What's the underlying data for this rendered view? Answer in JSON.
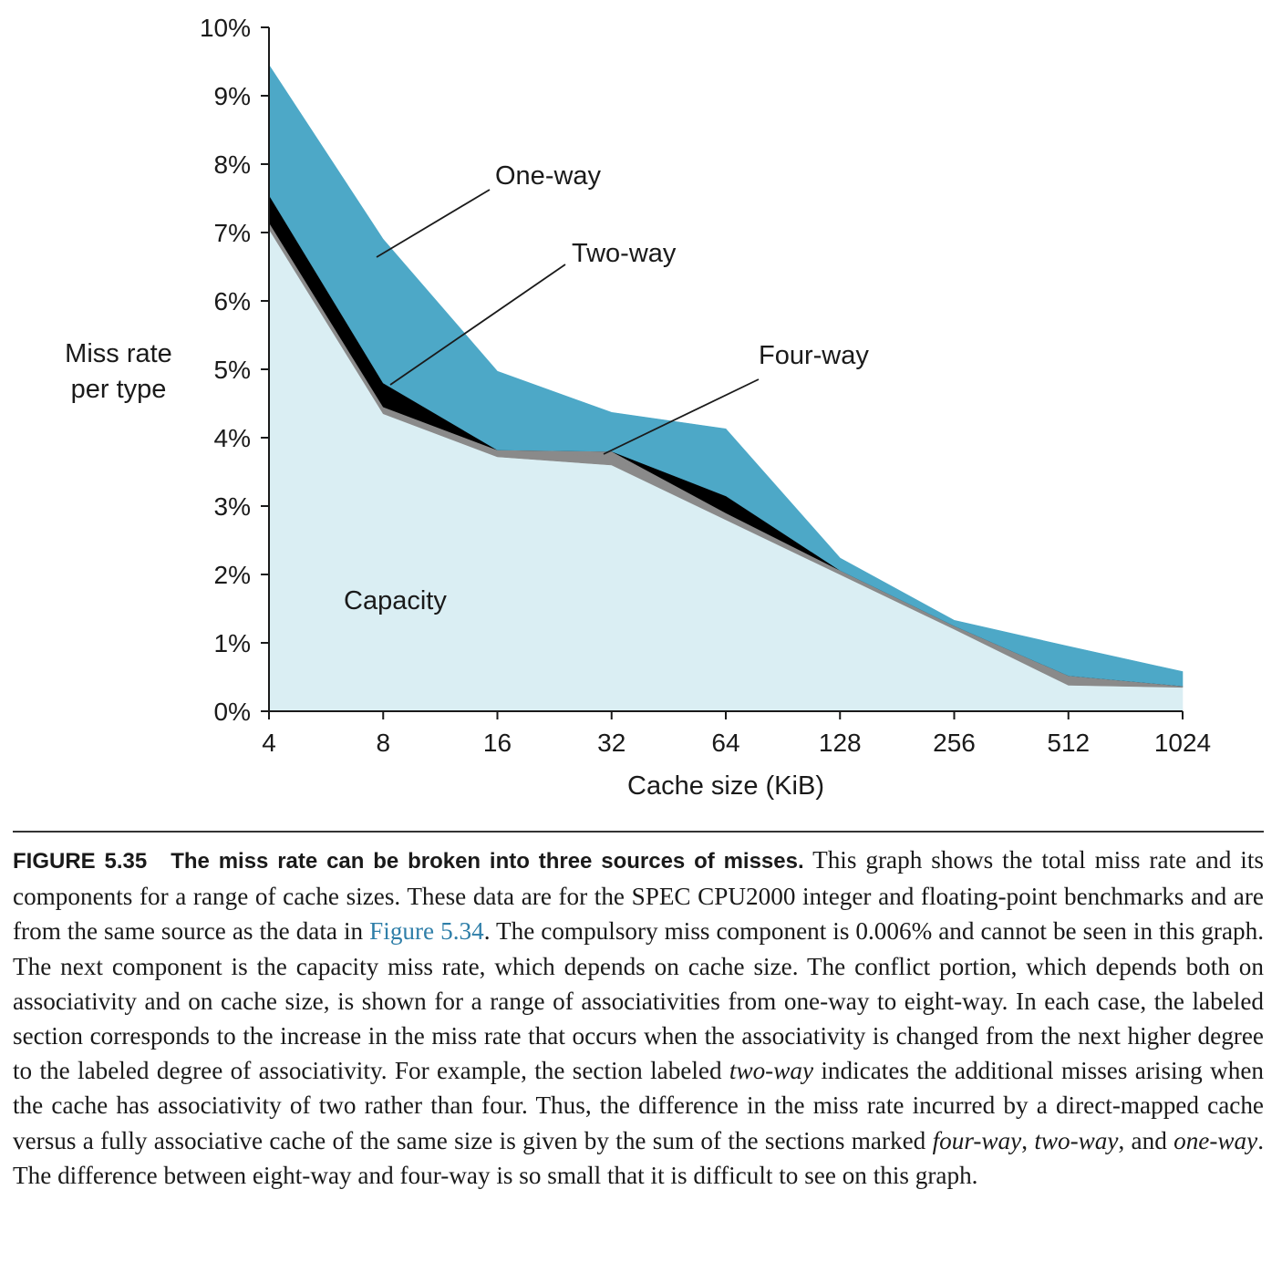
{
  "chart_data": {
    "type": "area",
    "stacked": true,
    "x": [
      4,
      8,
      16,
      32,
      64,
      128,
      256,
      512,
      1024
    ],
    "xlabel": "Cache size (KiB)",
    "ylabel_lines": [
      "Miss rate",
      "per type"
    ],
    "x_tick_labels": [
      "4",
      "8",
      "16",
      "32",
      "64",
      "128",
      "256",
      "512",
      "1024"
    ],
    "y_tick_labels": [
      "0%",
      "1%",
      "2%",
      "3%",
      "4%",
      "5%",
      "6%",
      "7%",
      "8%",
      "9%",
      "10%"
    ],
    "ylim": [
      0,
      10
    ],
    "x_scale": "log2",
    "grid": false,
    "series_labels": {
      "one_way": "One-way",
      "two_way": "Two-way",
      "four_way": "Four-way",
      "capacity": "Capacity"
    },
    "series": [
      {
        "key": "capacity",
        "color": "#daeef3",
        "values": [
          7.05,
          4.35,
          3.72,
          3.6,
          2.8,
          2.0,
          1.2,
          0.38,
          0.35
        ]
      },
      {
        "key": "eight_way",
        "color": "#8a8a8a",
        "values": [
          0.1,
          0.1,
          0.1,
          0.12,
          0.1,
          0.06,
          0.05,
          0.14,
          0.02
        ]
      },
      {
        "key": "four_way",
        "color": "#8a8a8a",
        "values": [
          0.0,
          0.0,
          0.0,
          0.08,
          0.0,
          0.0,
          0.0,
          0.0,
          0.0
        ]
      },
      {
        "key": "two_way",
        "color": "#000000",
        "values": [
          0.4,
          0.35,
          0.0,
          0.0,
          0.25,
          0.0,
          0.0,
          0.0,
          0.0
        ]
      },
      {
        "key": "one_way",
        "color": "#4da8c7",
        "values": [
          1.9,
          2.1,
          1.15,
          0.57,
          0.98,
          0.18,
          0.08,
          0.43,
          0.21
        ]
      }
    ],
    "totals": [
      9.45,
      6.9,
      4.97,
      4.37,
      4.13,
      2.24,
      1.33,
      0.95,
      0.58
    ]
  },
  "caption": {
    "figure_number": "FIGURE 5.35",
    "figure_title": "The miss rate can be broken into three sources of misses.",
    "p1": " This graph shows the total miss rate and its components for a range of cache sizes. These data are for the SPEC CPU2000 integer and floating-point benchmarks and are from the same source as the data in ",
    "xref": "Figure 5.34",
    "p2": ". The compulsory miss component is 0.006% and cannot be seen in this graph. The next component is the capacity miss rate, which depends on cache size. The conflict portion, which depends both on associativity and on cache size, is shown for a range of associativities from one-way to eight-way. In each case, the labeled section corresponds to the increase in the miss rate that occurs when the associativity is changed from the next higher degree to the labeled degree of associativity. For example, the section labeled ",
    "em1": "two-way",
    "p3": " indicates the additional misses arising when the cache has associativity of two rather than four. Thus, the difference in the miss rate incurred by a direct-mapped cache versus a fully associative cache of the same size is given by the sum of the sections marked ",
    "em2": "four-way",
    "p4": ", ",
    "em3": "two-way",
    "p5": ", and ",
    "em4": "one-way",
    "p6": ". The difference between eight-way and four-way is so small that it is difficult to see on this graph."
  }
}
